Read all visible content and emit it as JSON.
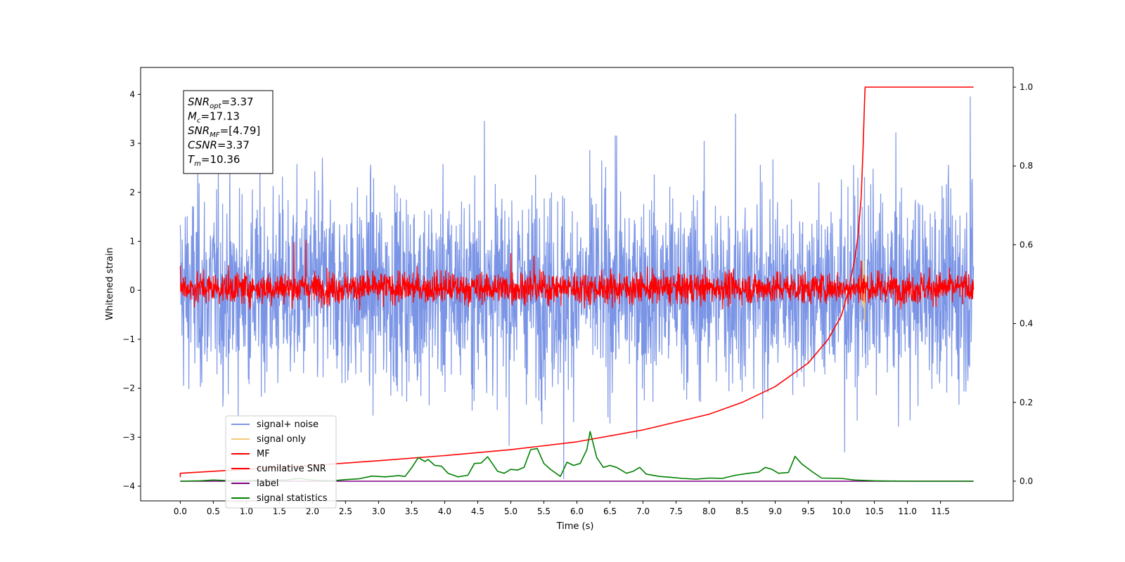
{
  "chart_data": {
    "type": "line",
    "xlabel": "Time (s)",
    "ylabel": "Whitened strain",
    "xlim": [
      -0.6,
      12.6
    ],
    "ylim": [
      -4.3,
      4.55
    ],
    "y2lim": [
      -0.05,
      1.05
    ],
    "x_ticks": [
      0.0,
      0.5,
      1.0,
      1.5,
      2.0,
      2.5,
      3.0,
      3.5,
      4.0,
      4.5,
      5.0,
      5.5,
      6.0,
      6.5,
      7.0,
      7.5,
      8.0,
      8.5,
      9.0,
      9.5,
      10.0,
      10.5,
      11.0,
      11.5
    ],
    "x_tick_labels": [
      "0.0",
      "0.5",
      "1.0",
      "1.5",
      "2.0",
      "2.5",
      "3.0",
      "3.5",
      "4.0",
      "4.5",
      "5.0",
      "5.5",
      "6.0",
      "6.5",
      "7.0",
      "7.5",
      "8.0",
      "8.5",
      "9.0",
      "9.5",
      "10.0",
      "10.5",
      "11.0",
      "11.5"
    ],
    "y_ticks": [
      -4,
      -3,
      -2,
      -1,
      0,
      1,
      2,
      3,
      4
    ],
    "y_tick_labels": [
      "−4",
      "−3",
      "−2",
      "−1",
      "0",
      "1",
      "2",
      "3",
      "4"
    ],
    "y2_ticks": [
      0.0,
      0.2,
      0.4,
      0.6,
      0.8,
      1.0
    ],
    "y2_tick_labels": [
      "0.0",
      "0.2",
      "0.4",
      "0.6",
      "0.8",
      "1.0"
    ],
    "grid": false,
    "legend_position": "lower-left",
    "annotation_lines": [
      {
        "sym": "SNR",
        "sub": "opt",
        "value": "=3.37"
      },
      {
        "sym": "M",
        "sub": "c",
        "value": "=17.13"
      },
      {
        "sym": "SNR",
        "sub": "MF",
        "value": "=[4.79]"
      },
      {
        "sym": "CSNR",
        "sub": "",
        "value": "=3.37"
      },
      {
        "sym": "T",
        "sub": "m",
        "value": "=10.36"
      }
    ],
    "series": [
      {
        "name": "signal+ noise",
        "color": "#7b95e6",
        "axis": "left",
        "style": "noise",
        "amplitude_mean": 0.0,
        "amplitude_sd": 1.0,
        "x_range": [
          0.0,
          12.0
        ],
        "spikes": [
          [
            2.15,
            2.7
          ],
          [
            4.6,
            3.45
          ],
          [
            5.8,
            -3.85
          ],
          [
            6.6,
            3.15
          ],
          [
            8.4,
            3.6
          ],
          [
            11.95,
            3.95
          ],
          [
            10.05,
            -3.3
          ]
        ]
      },
      {
        "name": "signal only",
        "color": "#f2c977",
        "axis": "left",
        "style": "burst",
        "points": [
          [
            10.28,
            0.0
          ],
          [
            10.3,
            0.3
          ],
          [
            10.32,
            -0.3
          ],
          [
            10.34,
            0.6
          ],
          [
            10.35,
            -0.65
          ],
          [
            10.36,
            0.3
          ],
          [
            10.37,
            0.0
          ]
        ]
      },
      {
        "name": "MF",
        "color": "#ff0000",
        "axis": "left",
        "style": "noise",
        "amplitude_mean": 0.05,
        "amplitude_sd": 0.16,
        "x_range": [
          0.0,
          12.0
        ],
        "spikes": [
          [
            1.72,
            0.98
          ],
          [
            1.9,
            1.02
          ],
          [
            0.0,
            0.5
          ],
          [
            5.0,
            0.75
          ],
          [
            5.35,
            0.7
          ],
          [
            10.3,
            0.6
          ]
        ]
      },
      {
        "name": "cumilative SNR",
        "color": "#ff0000",
        "axis": "right",
        "points": [
          [
            0.0,
            0.01
          ],
          [
            0.0,
            0.02
          ],
          [
            1.0,
            0.03
          ],
          [
            2.0,
            0.04
          ],
          [
            3.0,
            0.052
          ],
          [
            4.0,
            0.065
          ],
          [
            5.0,
            0.08
          ],
          [
            6.0,
            0.1
          ],
          [
            7.0,
            0.13
          ],
          [
            8.0,
            0.17
          ],
          [
            8.5,
            0.2
          ],
          [
            9.0,
            0.24
          ],
          [
            9.5,
            0.3
          ],
          [
            9.8,
            0.36
          ],
          [
            10.0,
            0.42
          ],
          [
            10.1,
            0.48
          ],
          [
            10.2,
            0.56
          ],
          [
            10.25,
            0.62
          ],
          [
            10.3,
            0.72
          ],
          [
            10.33,
            0.85
          ],
          [
            10.35,
            0.96
          ],
          [
            10.36,
            1.0
          ],
          [
            12.0,
            1.0
          ]
        ]
      },
      {
        "name": "label",
        "color": "#800080",
        "axis": "right",
        "points": [
          [
            0.0,
            0.0
          ],
          [
            12.0,
            0.0
          ]
        ]
      },
      {
        "name": "signal statistics",
        "color": "#008000",
        "axis": "right",
        "points": [
          [
            0.0,
            0.0
          ],
          [
            0.3,
            0.001
          ],
          [
            0.5,
            0.003
          ],
          [
            0.8,
            0.001
          ],
          [
            1.2,
            0.002
          ],
          [
            1.6,
            0.003
          ],
          [
            1.8,
            0.007
          ],
          [
            2.0,
            0.003
          ],
          [
            2.3,
            0.001
          ],
          [
            2.5,
            0.004
          ],
          [
            2.7,
            0.006
          ],
          [
            2.9,
            0.013
          ],
          [
            3.1,
            0.011
          ],
          [
            3.3,
            0.014
          ],
          [
            3.4,
            0.012
          ],
          [
            3.5,
            0.034
          ],
          [
            3.6,
            0.06
          ],
          [
            3.7,
            0.05
          ],
          [
            3.75,
            0.055
          ],
          [
            3.85,
            0.04
          ],
          [
            3.95,
            0.038
          ],
          [
            4.05,
            0.02
          ],
          [
            4.2,
            0.011
          ],
          [
            4.35,
            0.015
          ],
          [
            4.45,
            0.045
          ],
          [
            4.55,
            0.046
          ],
          [
            4.65,
            0.062
          ],
          [
            4.8,
            0.025
          ],
          [
            4.9,
            0.02
          ],
          [
            5.0,
            0.03
          ],
          [
            5.1,
            0.028
          ],
          [
            5.2,
            0.035
          ],
          [
            5.3,
            0.08
          ],
          [
            5.4,
            0.083
          ],
          [
            5.5,
            0.045
          ],
          [
            5.6,
            0.03
          ],
          [
            5.75,
            0.012
          ],
          [
            5.85,
            0.048
          ],
          [
            5.95,
            0.04
          ],
          [
            6.05,
            0.045
          ],
          [
            6.15,
            0.08
          ],
          [
            6.2,
            0.126
          ],
          [
            6.3,
            0.06
          ],
          [
            6.4,
            0.035
          ],
          [
            6.5,
            0.04
          ],
          [
            6.6,
            0.035
          ],
          [
            6.75,
            0.02
          ],
          [
            6.85,
            0.025
          ],
          [
            6.95,
            0.035
          ],
          [
            7.05,
            0.018
          ],
          [
            7.25,
            0.012
          ],
          [
            7.4,
            0.01
          ],
          [
            7.6,
            0.007
          ],
          [
            7.8,
            0.005
          ],
          [
            8.0,
            0.008
          ],
          [
            8.2,
            0.007
          ],
          [
            8.4,
            0.015
          ],
          [
            8.6,
            0.02
          ],
          [
            8.75,
            0.023
          ],
          [
            8.85,
            0.035
          ],
          [
            8.95,
            0.03
          ],
          [
            9.05,
            0.02
          ],
          [
            9.2,
            0.022
          ],
          [
            9.3,
            0.063
          ],
          [
            9.4,
            0.044
          ],
          [
            9.55,
            0.025
          ],
          [
            9.7,
            0.008
          ],
          [
            10.0,
            0.007
          ],
          [
            10.2,
            0.003
          ],
          [
            10.5,
            0.001
          ],
          [
            11.0,
            0.0
          ],
          [
            12.0,
            0.0
          ]
        ]
      }
    ]
  }
}
